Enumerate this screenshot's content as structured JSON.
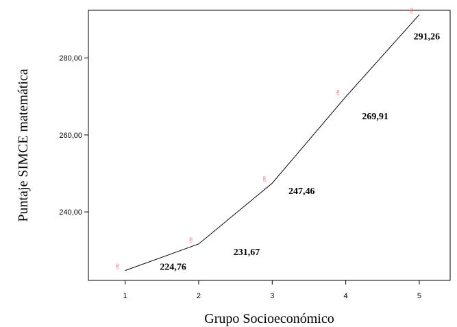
{
  "chart_data": {
    "type": "line",
    "xlabel": "Grupo Socioeconómico",
    "ylabel": "Puntaje SIMCE matemática",
    "x": [
      1,
      2,
      3,
      4,
      5
    ],
    "values": [
      224.76,
      231.67,
      247.46,
      269.91,
      291.26
    ],
    "data_labels": [
      "224,76",
      "231,67",
      "247,46",
      "269,91",
      "291,26"
    ],
    "x_ticks": [
      1,
      2,
      3,
      4,
      5
    ],
    "x_tick_labels": [
      "1",
      "2",
      "3",
      "4",
      "5"
    ],
    "y_ticks": [
      240,
      260,
      280
    ],
    "y_tick_labels": [
      "240,00",
      "260,00",
      "280,00"
    ],
    "xlim": [
      0.5,
      5.42
    ],
    "ylim": [
      222.2,
      292.4
    ],
    "grid": false,
    "line_color": "#000000",
    "marker_color": "#ff5f5f",
    "marker_icon": "hand-marker-icon"
  }
}
